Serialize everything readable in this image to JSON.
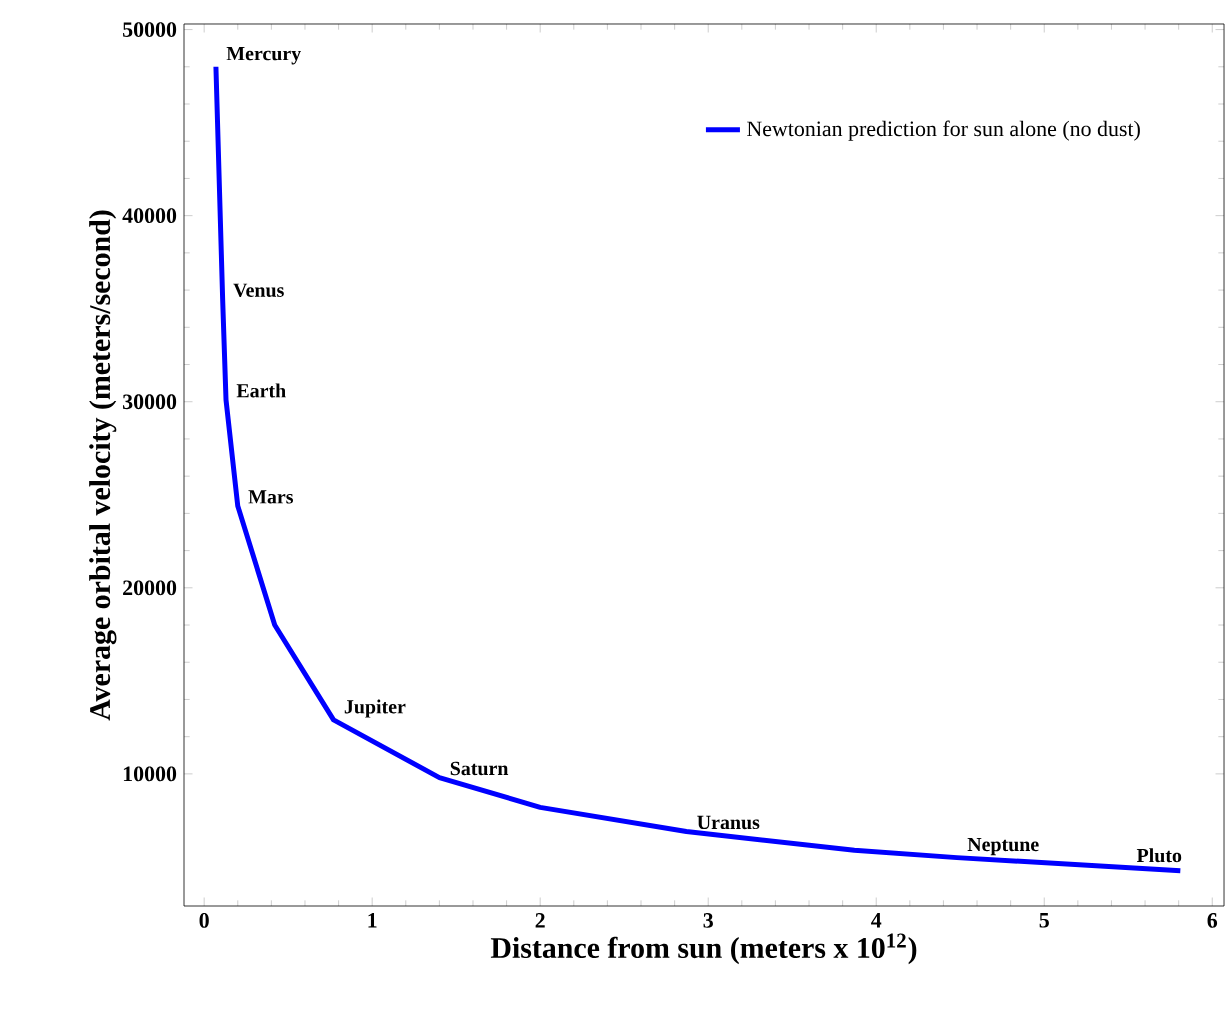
{
  "chart_data": {
    "type": "line",
    "xlabel": "Distance from sun (meters x 10$^{12}$)",
    "ylabel": "Average orbital velocity (meters/second)",
    "xlim": [
      -0.12,
      6.07
    ],
    "ylim": [
      2900,
      50300
    ],
    "xticks": [
      0,
      1,
      2,
      3,
      4,
      5,
      6
    ],
    "yticks": [
      10000,
      20000,
      30000,
      40000,
      50000
    ],
    "legend": "top right",
    "grid": false,
    "series": [
      {
        "name": "Newtonian prediction for sun alone (no dust)",
        "color": "#0000ff",
        "x": [
          0.07,
          0.11,
          0.13,
          0.2,
          0.42,
          0.77,
          1.4,
          2.0,
          2.87,
          3.87,
          4.48,
          5.81
        ],
        "values": [
          48000,
          35500,
          30100,
          24400,
          18000,
          12900,
          9800,
          8200,
          6900,
          5900,
          5500,
          4800
        ]
      }
    ],
    "annotations": [
      {
        "text": "Mercury",
        "x": 0.07,
        "y": 48000
      },
      {
        "text": "Venus",
        "x": 0.11,
        "y": 35500
      },
      {
        "text": "Earth",
        "x": 0.13,
        "y": 30100
      },
      {
        "text": "Mars",
        "x": 0.2,
        "y": 24400
      },
      {
        "text": "Jupiter",
        "x": 0.77,
        "y": 12900
      },
      {
        "text": "Saturn",
        "x": 1.4,
        "y": 9800
      },
      {
        "text": "Uranus",
        "x": 2.87,
        "y": 6900
      },
      {
        "text": "Neptune",
        "x": 4.48,
        "y": 5500
      },
      {
        "text": "Pluto",
        "x": 5.81,
        "y": 4800
      }
    ]
  }
}
